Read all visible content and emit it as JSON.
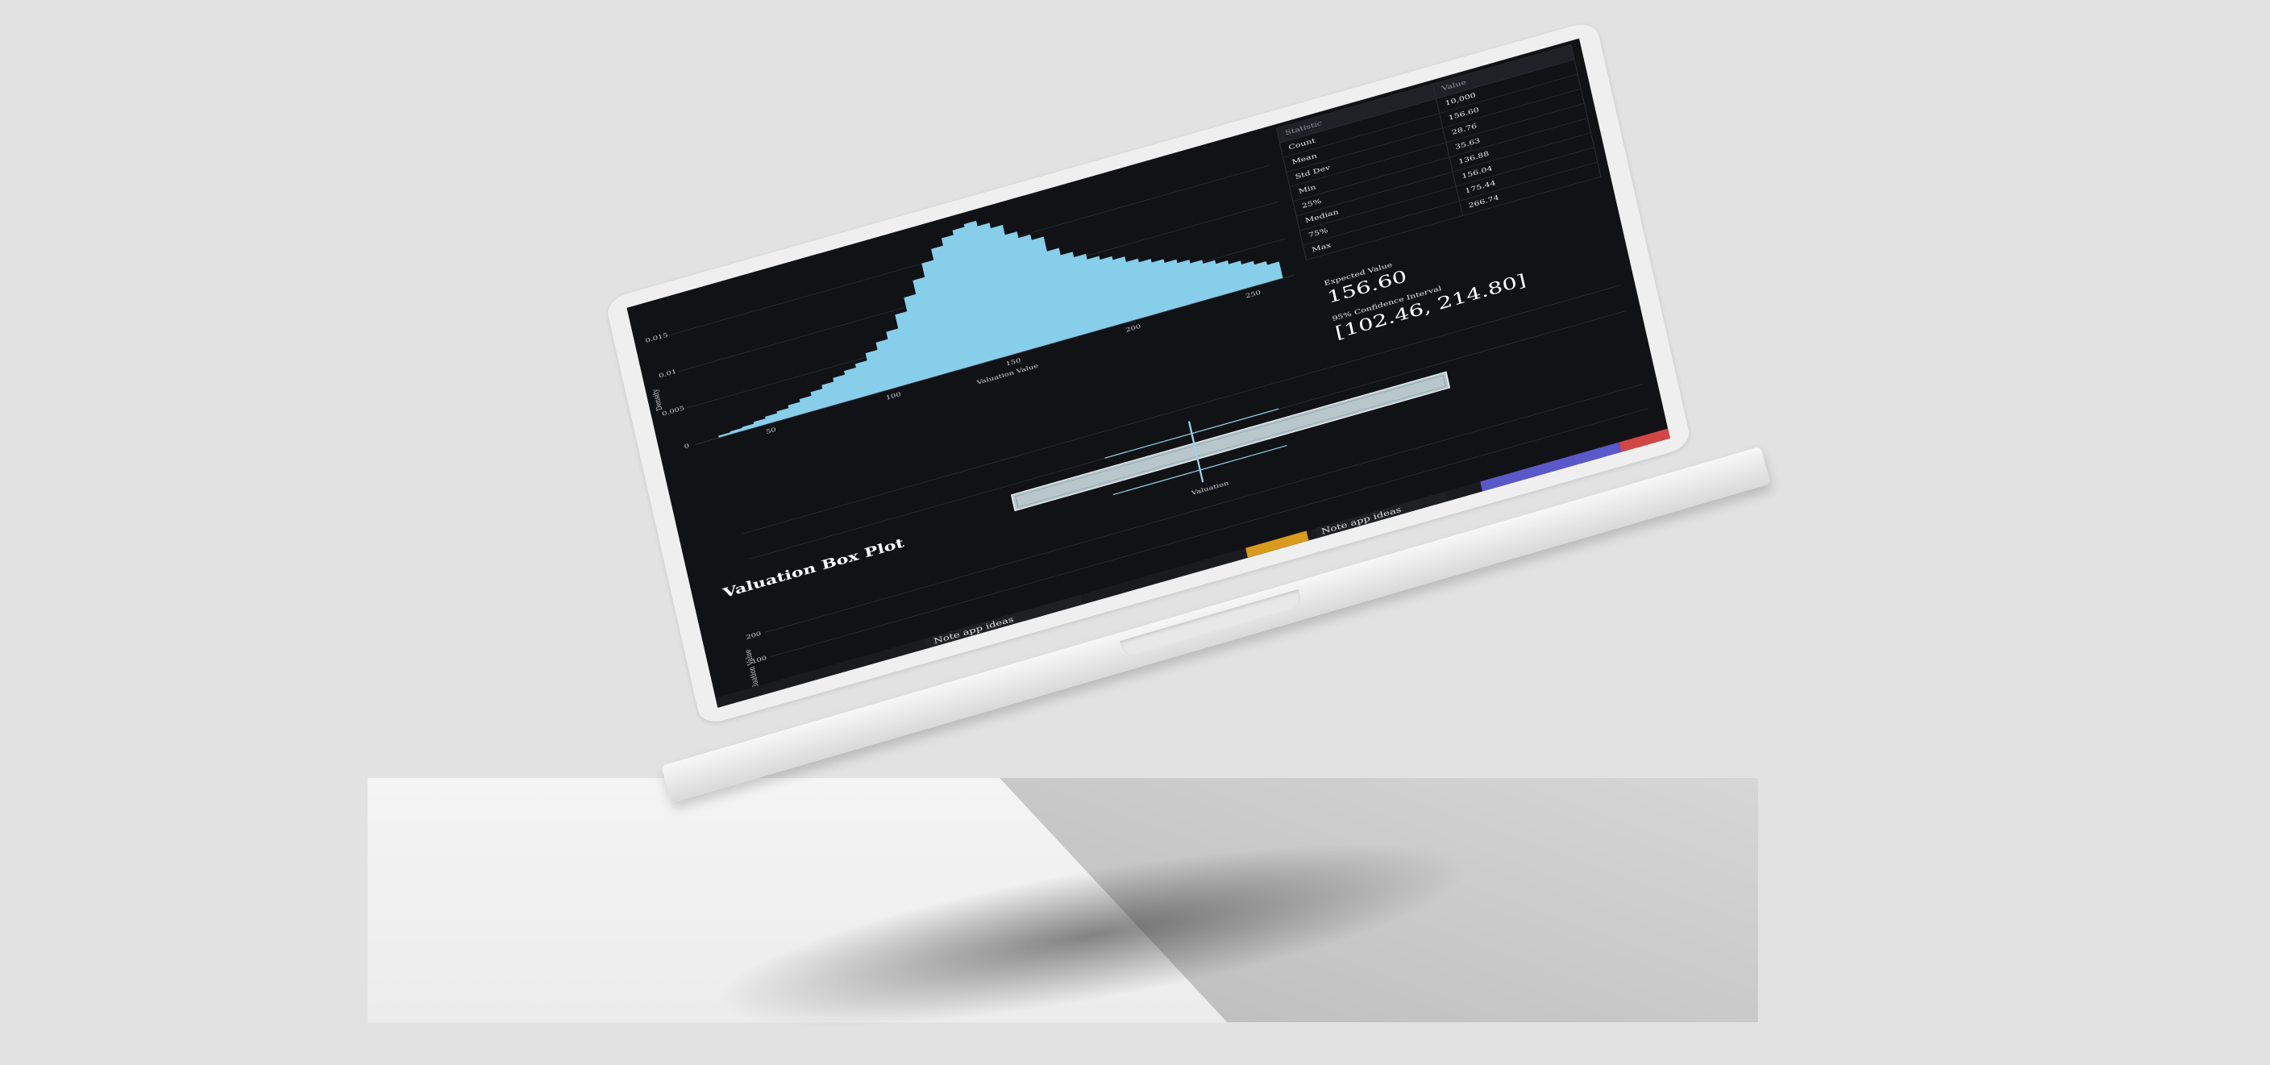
{
  "histogram": {
    "ylabel": "Density",
    "xlabel": "Valuation Value",
    "yticks": [
      "0.015",
      "0.01",
      "0.005",
      "0"
    ],
    "xticks": [
      "50",
      "100",
      "150",
      "200",
      "250"
    ]
  },
  "stats": {
    "headers": [
      "Statistic",
      "Value"
    ],
    "rows": [
      [
        "Count",
        "10,000"
      ],
      [
        "Mean",
        "156.60"
      ],
      [
        "Std Dev",
        "28.76"
      ],
      [
        "Min",
        "35.63"
      ],
      [
        "25%",
        "136.88"
      ],
      [
        "Median",
        "156.04"
      ],
      [
        "75%",
        "175.44"
      ],
      [
        "Max",
        "266.74"
      ]
    ]
  },
  "expected": {
    "label": "Expected Value",
    "value": "156.60"
  },
  "ci": {
    "label": "95% Confidence Interval",
    "value": "[102.46, 214.80]"
  },
  "boxplot": {
    "title": "Valuation Box Plot",
    "xlabel": "Valuation",
    "ylabel": "Valuation Value",
    "yticks": [
      "200",
      "100"
    ]
  },
  "taskbar": {
    "item1": "Note app ideas",
    "item2": "Note app ideas"
  },
  "chart_data": {
    "type": "bar",
    "bins_x": [
      35,
      40,
      45,
      50,
      55,
      60,
      65,
      70,
      75,
      80,
      85,
      90,
      95,
      100,
      105,
      110,
      115,
      120,
      125,
      130,
      135,
      140,
      145,
      150,
      155,
      160,
      165,
      170,
      175,
      180,
      185,
      190,
      195,
      200,
      205,
      210,
      215,
      220,
      225,
      230,
      235,
      240,
      245,
      250,
      255,
      260,
      265
    ],
    "values": [
      0.0002,
      0.0003,
      0.0004,
      0.0006,
      0.0008,
      0.001,
      0.0013,
      0.0016,
      0.002,
      0.0024,
      0.0028,
      0.0032,
      0.0036,
      0.0044,
      0.0052,
      0.006,
      0.0075,
      0.009,
      0.0105,
      0.012,
      0.0132,
      0.014,
      0.0145,
      0.0148,
      0.0142,
      0.0136,
      0.0125,
      0.0118,
      0.0112,
      0.0096,
      0.0088,
      0.0082,
      0.0076,
      0.0072,
      0.0068,
      0.0062,
      0.0058,
      0.0054,
      0.005,
      0.0046,
      0.0042,
      0.0038,
      0.0034,
      0.003,
      0.0026,
      0.0022,
      0.0018
    ],
    "xlabel": "Valuation Value",
    "ylabel": "Density",
    "xlim": [
      25,
      275
    ],
    "ylim": [
      0,
      0.016
    ],
    "color": "#87ceeb",
    "grid": true
  }
}
